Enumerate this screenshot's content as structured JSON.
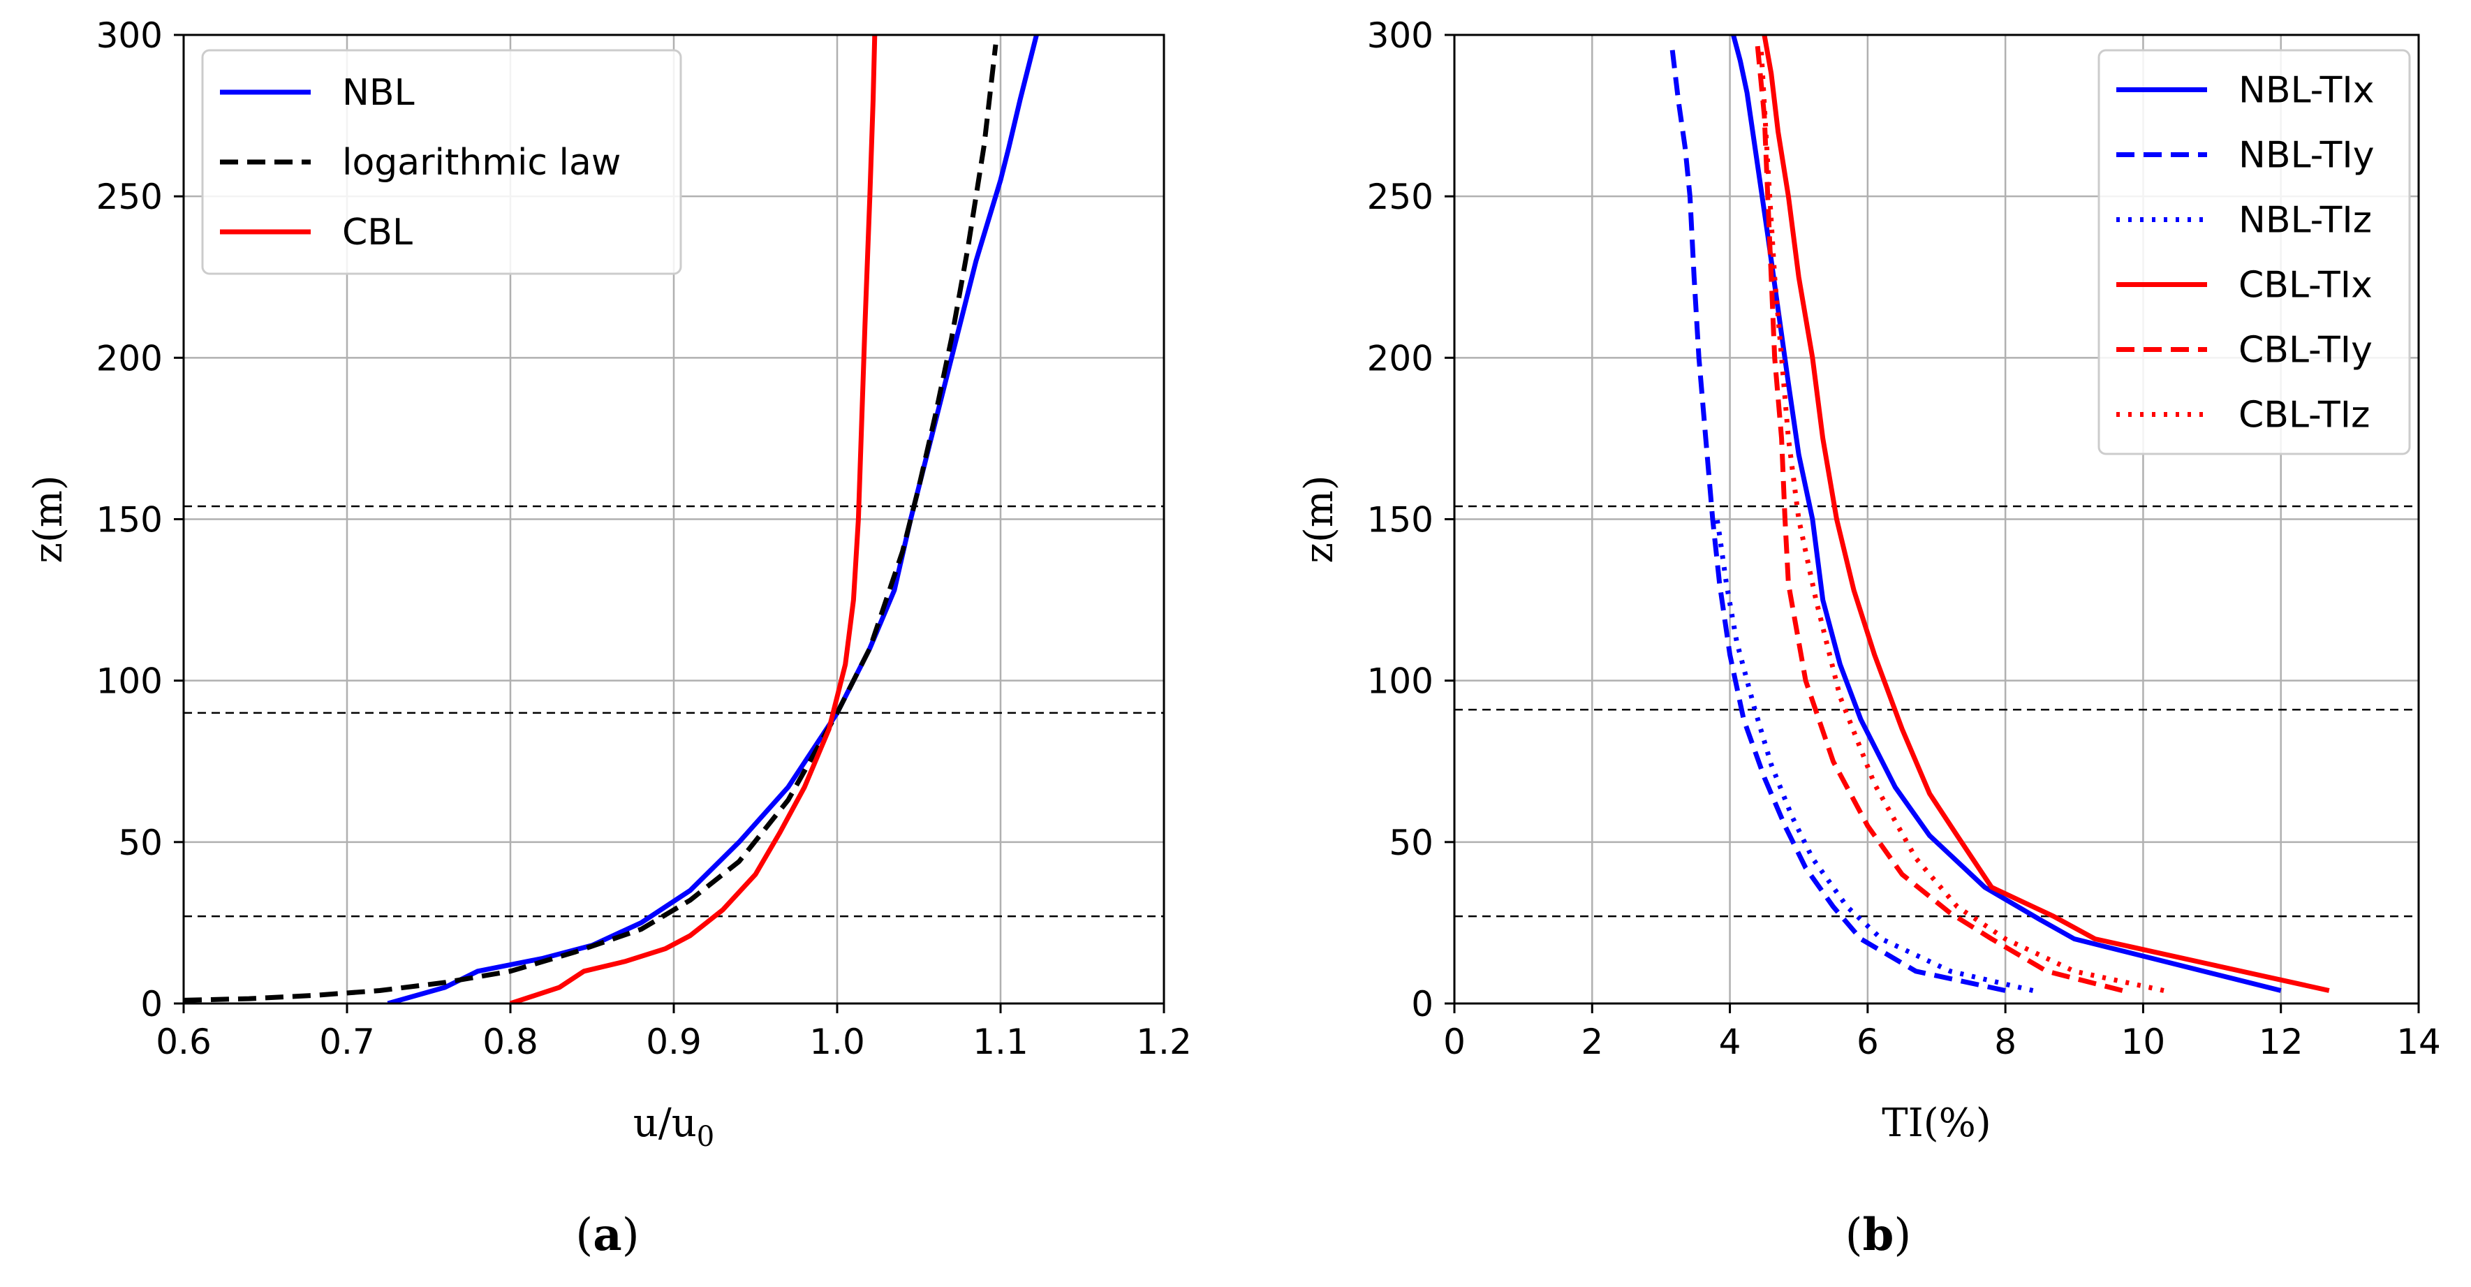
{
  "chart_data": [
    {
      "type": "line",
      "panel": "a",
      "panel_label": "a",
      "xlabel": "u/u",
      "xlabel_sub": "0",
      "ylabel": "z(m)",
      "xlim": [
        0.6,
        1.2
      ],
      "ylim": [
        0,
        300
      ],
      "xticks": [
        0.6,
        0.7,
        0.8,
        0.9,
        1.0,
        1.1,
        1.2
      ],
      "xtick_labels": [
        "0.6",
        "0.7",
        "0.8",
        "0.9",
        "1.0",
        "1.1",
        "1.2"
      ],
      "yticks": [
        0,
        50,
        100,
        150,
        200,
        250,
        300
      ],
      "ytick_labels": [
        "0",
        "50",
        "100",
        "150",
        "200",
        "250",
        "300"
      ],
      "grid": true,
      "legend_position": "top-left",
      "hlines": [
        27,
        90,
        154
      ],
      "series": [
        {
          "name": "NBL",
          "color": "#0000ff",
          "dash": "solid",
          "x": [
            0.725,
            0.76,
            0.78,
            0.8,
            0.82,
            0.85,
            0.88,
            0.91,
            0.94,
            0.97,
            1.0,
            1.02,
            1.035,
            1.045,
            1.06,
            1.075,
            1.085,
            1.1,
            1.105,
            1.112,
            1.122
          ],
          "y": [
            0,
            5,
            10,
            12,
            14,
            18,
            25,
            35,
            50,
            67,
            90,
            110,
            128,
            150,
            180,
            210,
            230,
            255,
            265,
            280,
            300
          ]
        },
        {
          "name": "logarithmic law",
          "color": "#000000",
          "dash": "dashed",
          "x": [
            0.6,
            0.64,
            0.68,
            0.72,
            0.76,
            0.8,
            0.84,
            0.88,
            0.91,
            0.94,
            0.97,
            1.0,
            1.02,
            1.04,
            1.05,
            1.06,
            1.07,
            1.08,
            1.09,
            1.097
          ],
          "y": [
            1,
            1.5,
            2.5,
            4,
            6.5,
            10,
            16,
            23,
            32,
            44,
            63,
            90,
            110,
            140,
            160,
            182,
            206,
            234,
            266,
            297
          ]
        },
        {
          "name": "CBL",
          "color": "#ff0000",
          "dash": "solid",
          "x": [
            0.8,
            0.83,
            0.845,
            0.87,
            0.895,
            0.91,
            0.93,
            0.95,
            0.965,
            0.98,
            0.995,
            1.005,
            1.01,
            1.013,
            1.015,
            1.017,
            1.02,
            1.022,
            1.023
          ],
          "y": [
            0,
            5,
            10,
            13,
            17,
            21,
            29,
            40,
            53,
            67,
            85,
            105,
            125,
            150,
            180,
            210,
            250,
            280,
            300
          ]
        }
      ]
    },
    {
      "type": "line",
      "panel": "b",
      "panel_label": "b",
      "xlabel": "TI(%)",
      "ylabel": "z(m)",
      "xlim": [
        0,
        14
      ],
      "ylim": [
        0,
        300
      ],
      "xticks": [
        0,
        2,
        4,
        6,
        8,
        10,
        12,
        14
      ],
      "xtick_labels": [
        "0",
        "2",
        "4",
        "6",
        "8",
        "10",
        "12",
        "14"
      ],
      "yticks": [
        0,
        50,
        100,
        150,
        200,
        250,
        300
      ],
      "ytick_labels": [
        "0",
        "50",
        "100",
        "150",
        "200",
        "250",
        "300"
      ],
      "grid": true,
      "legend_position": "top-right",
      "hlines": [
        27,
        91,
        154
      ],
      "series": [
        {
          "name": "NBL-TIx",
          "color": "#0000ff",
          "dash": "solid",
          "x": [
            12.0,
            10.5,
            9.0,
            8.5,
            7.7,
            6.9,
            6.4,
            5.9,
            5.6,
            5.35,
            5.2,
            5.0,
            4.85,
            4.7,
            4.55,
            4.4,
            4.25,
            4.15,
            4.05
          ],
          "y": [
            4,
            12,
            20,
            26,
            36,
            52,
            67,
            88,
            105,
            125,
            150,
            170,
            192,
            215,
            238,
            260,
            282,
            292,
            300
          ]
        },
        {
          "name": "NBL-TIy",
          "color": "#0000ff",
          "dash": "dashed",
          "x": [
            8.0,
            6.7,
            5.9,
            5.5,
            5.1,
            4.8,
            4.5,
            4.2,
            4.0,
            3.85,
            3.75,
            3.65,
            3.55,
            3.48,
            3.42,
            3.35,
            3.25,
            3.15
          ],
          "y": [
            4,
            10,
            20,
            30,
            42,
            55,
            70,
            88,
            108,
            130,
            150,
            175,
            200,
            225,
            250,
            265,
            280,
            298
          ]
        },
        {
          "name": "NBL-TIz",
          "color": "#0000ff",
          "dash": "dotted",
          "x": [
            8.4,
            7.2,
            6.2,
            5.7,
            5.2,
            4.9,
            4.6,
            4.35,
            4.1,
            3.95,
            3.85,
            3.8
          ],
          "y": [
            4,
            10,
            20,
            30,
            45,
            58,
            74,
            92,
            112,
            130,
            145,
            152
          ]
        },
        {
          "name": "CBL-TIx",
          "color": "#ff0000",
          "dash": "solid",
          "x": [
            12.7,
            11.0,
            9.3,
            8.7,
            7.8,
            7.3,
            6.9,
            6.5,
            6.1,
            5.8,
            5.55,
            5.35,
            5.2,
            5.0,
            4.85,
            4.7,
            4.6,
            4.5
          ],
          "y": [
            4,
            12,
            20,
            27,
            36,
            52,
            65,
            85,
            108,
            128,
            150,
            175,
            200,
            225,
            250,
            270,
            288,
            300
          ]
        },
        {
          "name": "CBL-TIy",
          "color": "#ff0000",
          "dash": "dashed",
          "x": [
            9.7,
            8.6,
            7.8,
            7.2,
            6.5,
            6.0,
            5.5,
            5.1,
            4.85,
            4.8,
            4.75,
            4.65,
            4.6,
            4.55,
            4.5,
            4.4
          ],
          "y": [
            4,
            10,
            20,
            28,
            40,
            55,
            75,
            100,
            130,
            150,
            175,
            200,
            225,
            250,
            275,
            297
          ]
        },
        {
          "name": "CBL-TIz",
          "color": "#ff0000",
          "dash": "dotted",
          "x": [
            10.3,
            9.0,
            8.0,
            7.3,
            6.7,
            6.1,
            5.6,
            5.25,
            5.0,
            4.85,
            4.75,
            4.65,
            4.55,
            4.45
          ],
          "y": [
            4,
            10,
            20,
            30,
            45,
            68,
            95,
            125,
            150,
            175,
            200,
            225,
            260,
            297
          ]
        }
      ]
    }
  ]
}
